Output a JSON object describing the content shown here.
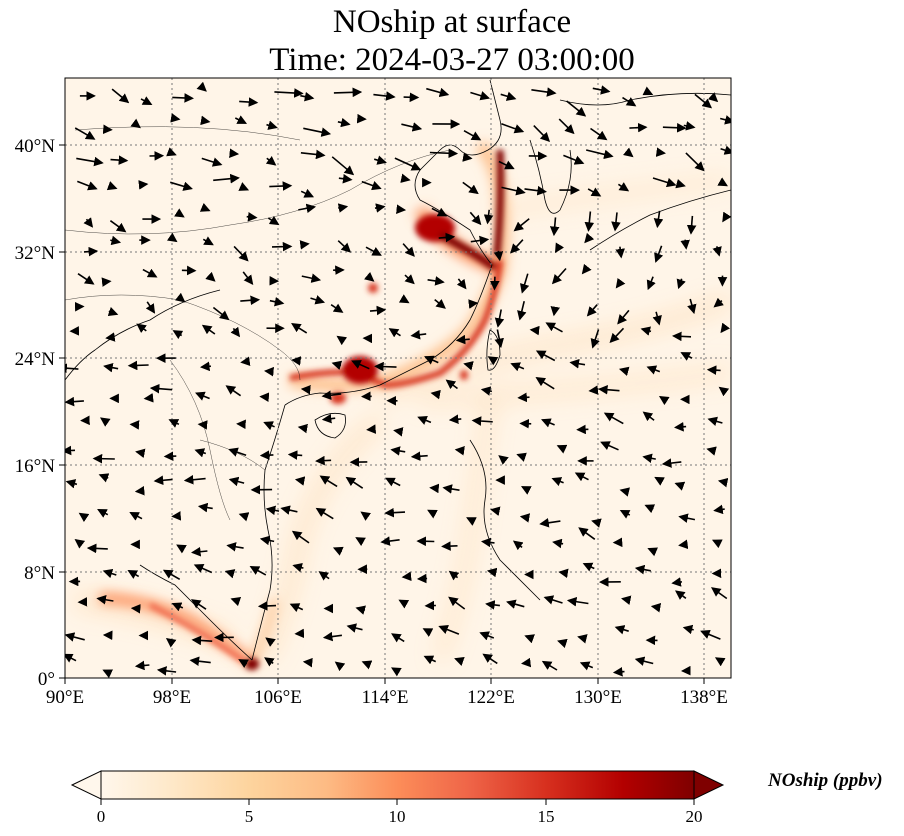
{
  "title": {
    "line1": "NOship at surface",
    "line2": "Time: 2024-03-27 03:00:00"
  },
  "axes": {
    "x_ticks": [
      "90°E",
      "98°E",
      "106°E",
      "114°E",
      "122°E",
      "130°E",
      "138°E"
    ],
    "y_ticks": [
      "0°",
      "8°N",
      "16°N",
      "24°N",
      "32°N",
      "40°N"
    ]
  },
  "colorbar": {
    "label": "NOship (ppbv)",
    "ticks": [
      "0",
      "5",
      "10",
      "15",
      "20"
    ],
    "min": 0,
    "max": 20
  },
  "map_meta": {
    "lon_range": [
      90,
      140
    ],
    "lat_range": [
      0,
      45
    ],
    "colormap": "OrRd",
    "colors": [
      "#fff7ec",
      "#fee8c8",
      "#fdd49e",
      "#fdbb84",
      "#fc8d59",
      "#ef6548",
      "#d7301f",
      "#b30000",
      "#7f0000"
    ]
  }
}
